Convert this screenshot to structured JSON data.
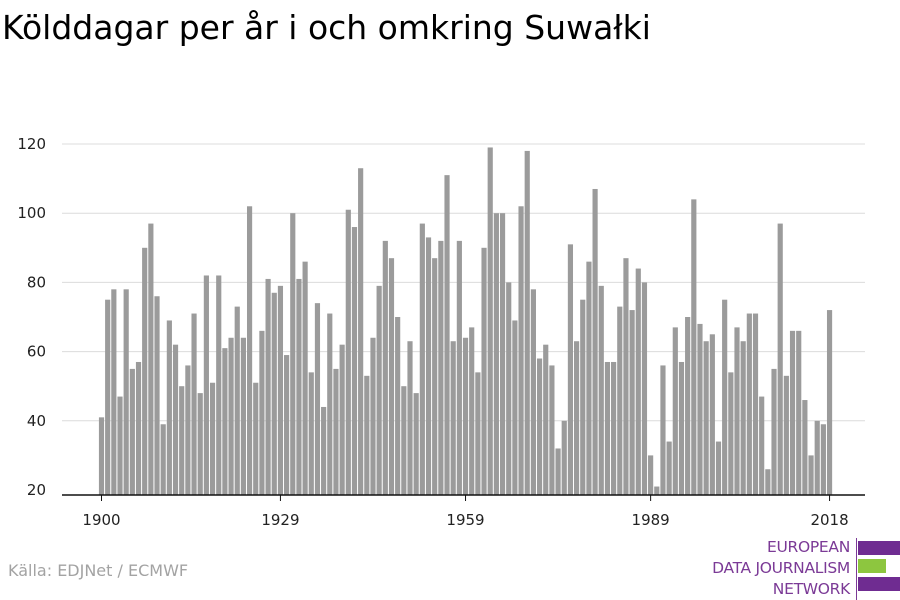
{
  "title": "Kölddagar per år i och omkring Suwałki",
  "source": "Källa: EDJNet / ECMWF",
  "logo": {
    "lines": [
      "EUROPEAN",
      "DATA JOURNALISM",
      "NETWORK"
    ],
    "colors": {
      "purple": "#6f2c91",
      "green": "#8dc63f",
      "text": "#7b3a96"
    }
  },
  "chart_data": {
    "type": "bar",
    "title": "Kölddagar per år i och omkring Suwałki",
    "xlabel": "",
    "ylabel": "",
    "x_start": 1900,
    "x_end": 2018,
    "xticks": [
      1900,
      1929,
      1959,
      1989,
      2018
    ],
    "yticks": [
      20,
      40,
      60,
      80,
      100,
      120
    ],
    "ylim": [
      20,
      125
    ],
    "grid": true,
    "bar_color": "#9b9b9b",
    "values": [
      41,
      75,
      78,
      47,
      78,
      55,
      57,
      90,
      97,
      76,
      39,
      69,
      62,
      50,
      56,
      71,
      48,
      82,
      51,
      82,
      61,
      64,
      73,
      64,
      102,
      51,
      66,
      81,
      77,
      79,
      59,
      100,
      81,
      86,
      54,
      74,
      44,
      71,
      55,
      62,
      101,
      96,
      113,
      53,
      64,
      79,
      92,
      87,
      70,
      50,
      63,
      48,
      97,
      93,
      87,
      92,
      111,
      63,
      92,
      64,
      67,
      54,
      90,
      119,
      100,
      100,
      80,
      69,
      102,
      118,
      78,
      58,
      62,
      56,
      32,
      40,
      91,
      63,
      75,
      86,
      107,
      79,
      57,
      57,
      73,
      87,
      72,
      84,
      80,
      30,
      21,
      56,
      34,
      67,
      57,
      70,
      104,
      68,
      63,
      65,
      34,
      75,
      54,
      67,
      63,
      71,
      71,
      47,
      26,
      55,
      97,
      53,
      66,
      66,
      46,
      30,
      40,
      39,
      72
    ]
  }
}
